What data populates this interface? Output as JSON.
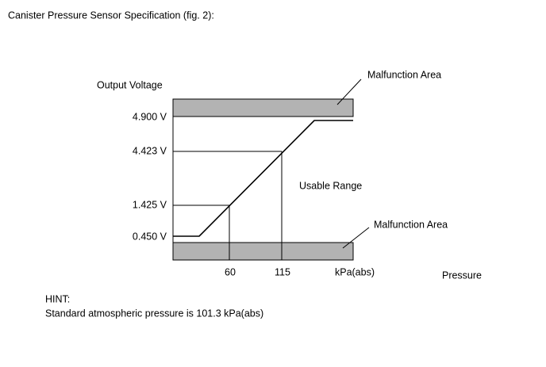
{
  "caption": "Canister Pressure Sensor Specification (fig. 2):",
  "figure": {
    "y_title": "Output Voltage",
    "y_labels": [
      "4.900 V",
      "4.423 V",
      "1.425 V",
      "0.450 V"
    ],
    "x_labels": [
      "60",
      "115",
      "kPa(abs)"
    ],
    "x_title": "Pressure",
    "upper_area": "Malfunction Area",
    "lower_area": "Malfunction Area",
    "usable": "Usable Range"
  },
  "hint": {
    "title": "HINT:",
    "text": "Standard atmospheric pressure is 101.3 kPa(abs)"
  }
}
